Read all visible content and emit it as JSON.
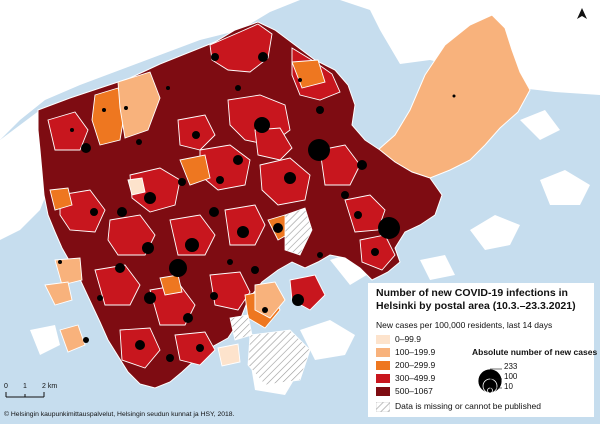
{
  "legend": {
    "title": "Number of new COVID-19 infections in Helsinki by postal area (10.3.–23.3.2021)",
    "subtitle": "New cases per 100,000 residents, last 14 days",
    "classes": [
      {
        "label": "0–99.9",
        "color": "#fde3cc"
      },
      {
        "label": "100–199.9",
        "color": "#f8b27c"
      },
      {
        "label": "200–299.9",
        "color": "#ee7720"
      },
      {
        "label": "300–499.9",
        "color": "#c8161e"
      },
      {
        "label": "500–1067",
        "color": "#7e0c12"
      }
    ],
    "absolute_title": "Absolute number of new cases",
    "absolute_values": [
      "233",
      "100",
      "10"
    ],
    "missing_label": "Data is missing or cannot be published"
  },
  "scale_bar": {
    "labels": [
      "0",
      "1",
      "2 km"
    ]
  },
  "copyright": "© Helsingin kaupunkimittauspalvelut, Helsingin seudun kunnat ja HSY, 2018.",
  "colors": {
    "sea": "#c6ddee",
    "land_outside": "#ffffff",
    "missing": "#ffffff",
    "boundary": "#ffffff",
    "dot": "#000000"
  },
  "icons": {
    "north_arrow": "north-arrow-icon"
  }
}
